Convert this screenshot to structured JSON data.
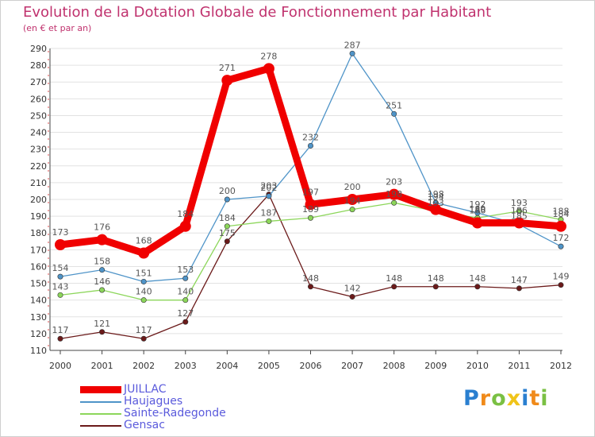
{
  "header": {
    "title": "Evolution de la Dotation Globale de Fonctionnement par Habitant",
    "subtitle": "(en € et par an)"
  },
  "chart_data": {
    "type": "line",
    "title": "Evolution de la Dotation Globale de Fonctionnement par Habitant",
    "subtitle": "(en € et par an)",
    "xlabel": "",
    "ylabel": "",
    "x": [
      "2000",
      "2001",
      "2002",
      "2003",
      "2004",
      "2005",
      "2006",
      "2007",
      "2008",
      "2009",
      "2010",
      "2011",
      "2012"
    ],
    "ylim": [
      110,
      290
    ],
    "yticks": [
      110,
      120,
      130,
      140,
      150,
      160,
      170,
      180,
      190,
      200,
      210,
      220,
      230,
      240,
      250,
      260,
      270,
      280,
      290
    ],
    "grid": true,
    "legend_position": "bottom-left",
    "series": [
      {
        "name": "Gensac",
        "color": "#6b1a1a",
        "values": [
          117,
          121,
          117,
          127,
          175,
          203,
          148,
          142,
          148,
          148,
          148,
          147,
          149
        ]
      },
      {
        "name": "Sainte-Radegonde",
        "color": "#8cd65a",
        "values": [
          143,
          146,
          140,
          140,
          184,
          187,
          189,
          194,
          198,
          193,
          189,
          193,
          188
        ]
      },
      {
        "name": "Haujagues",
        "color": "#4f94c8",
        "values": [
          154,
          158,
          151,
          153,
          200,
          202,
          232,
          287,
          251,
          198,
          192,
          185,
          172
        ]
      },
      {
        "name": "JUILLAC",
        "color": "#f00000",
        "values": [
          173,
          176,
          168,
          184,
          271,
          278,
          197,
          200,
          203,
          194,
          186,
          186,
          184
        ]
      }
    ]
  },
  "legend": {
    "items": [
      {
        "label": "JUILLAC",
        "color": "#f00000"
      },
      {
        "label": "Haujagues",
        "color": "#4f94c8"
      },
      {
        "label": "Sainte-Radegonde",
        "color": "#8cd65a"
      },
      {
        "label": "Gensac",
        "color": "#6b1a1a"
      }
    ]
  },
  "logo": {
    "text": "Proxiti",
    "colors": [
      "#2a7fd0",
      "#f08a1a",
      "#7ac043",
      "#f0c419",
      "#2a7fd0",
      "#f08a1a",
      "#7ac043"
    ]
  }
}
